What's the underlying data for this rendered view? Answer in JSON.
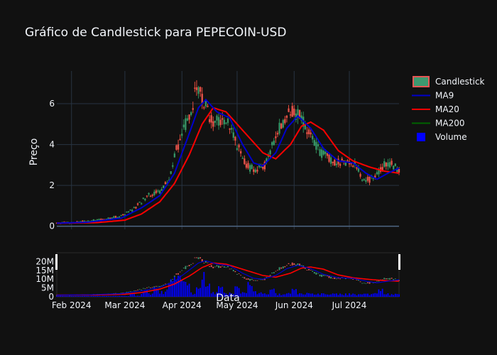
{
  "chart_data": {
    "type": "candlestick",
    "title": "Gráfico de Candlestick para PEPECOIN-USD",
    "ylabel": "Preço",
    "xlabel": "Data",
    "ylim": [
      -0.15,
      7.6
    ],
    "xlim": [
      "2024-01-24",
      "2024-07-28"
    ],
    "grid": true,
    "legend_position": "right",
    "x_ticks": [
      {
        "date": "2024-02-01",
        "label": "Feb 2024"
      },
      {
        "date": "2024-03-01",
        "label": "Mar 2024"
      },
      {
        "date": "2024-04-01",
        "label": "Apr 2024"
      },
      {
        "date": "2024-05-01",
        "label": "May 2024"
      },
      {
        "date": "2024-06-01",
        "label": "Jun 2024"
      },
      {
        "date": "2024-07-01",
        "label": "Jul 2024"
      }
    ],
    "y_ticks": [
      0,
      2,
      4,
      6
    ],
    "rangeslider": {
      "volume_ticks": [
        {
          "value": 0,
          "label": "0"
        },
        {
          "value": 5000000,
          "label": "5M"
        },
        {
          "value": 10000000,
          "label": "10M"
        },
        {
          "value": 15000000,
          "label": "15M"
        },
        {
          "value": 20000000,
          "label": "20M"
        }
      ]
    },
    "legend": [
      {
        "name": "Candlestick",
        "color": "#2e8b57",
        "alt_color": "#e74c3c",
        "kind": "candle"
      },
      {
        "name": "MA9",
        "color": "#0000cc",
        "kind": "line"
      },
      {
        "name": "MA20",
        "color": "#ff0000",
        "kind": "line"
      },
      {
        "name": "MA200",
        "color": "#006400",
        "kind": "line"
      },
      {
        "name": "Volume",
        "color": "#0000ff",
        "kind": "bar"
      }
    ],
    "price_anchors": [
      [
        "2024-01-24",
        0.15
      ],
      [
        "2024-02-01",
        0.2
      ],
      [
        "2024-02-10",
        0.25
      ],
      [
        "2024-02-20",
        0.35
      ],
      [
        "2024-02-28",
        0.5
      ],
      [
        "2024-03-05",
        0.8
      ],
      [
        "2024-03-10",
        1.2
      ],
      [
        "2024-03-15",
        1.6
      ],
      [
        "2024-03-20",
        1.7
      ],
      [
        "2024-03-25",
        2.3
      ],
      [
        "2024-03-28",
        3.5
      ],
      [
        "2024-04-01",
        4.5
      ],
      [
        "2024-04-05",
        5.5
      ],
      [
        "2024-04-09",
        6.7
      ],
      [
        "2024-04-12",
        6.3
      ],
      [
        "2024-04-15",
        5.6
      ],
      [
        "2024-04-18",
        5.0
      ],
      [
        "2024-04-22",
        5.2
      ],
      [
        "2024-04-25",
        5.3
      ],
      [
        "2024-04-29",
        4.5
      ],
      [
        "2024-05-03",
        3.5
      ],
      [
        "2024-05-07",
        2.9
      ],
      [
        "2024-05-12",
        2.8
      ],
      [
        "2024-05-16",
        3.0
      ],
      [
        "2024-05-20",
        4.0
      ],
      [
        "2024-05-25",
        5.0
      ],
      [
        "2024-05-30",
        5.6
      ],
      [
        "2024-06-03",
        5.5
      ],
      [
        "2024-06-07",
        5.0
      ],
      [
        "2024-06-11",
        4.3
      ],
      [
        "2024-06-15",
        3.6
      ],
      [
        "2024-06-20",
        3.3
      ],
      [
        "2024-06-25",
        3.1
      ],
      [
        "2024-06-30",
        3.2
      ],
      [
        "2024-07-03",
        3.1
      ],
      [
        "2024-07-08",
        2.4
      ],
      [
        "2024-07-12",
        2.3
      ],
      [
        "2024-07-16",
        2.5
      ],
      [
        "2024-07-20",
        3.0
      ],
      [
        "2024-07-24",
        3.1
      ],
      [
        "2024-07-28",
        2.7
      ]
    ],
    "ma9_anchors": [
      [
        "2024-01-24",
        0.15
      ],
      [
        "2024-02-10",
        0.2
      ],
      [
        "2024-02-28",
        0.4
      ],
      [
        "2024-03-10",
        0.9
      ],
      [
        "2024-03-20",
        1.5
      ],
      [
        "2024-03-28",
        2.6
      ],
      [
        "2024-04-04",
        4.3
      ],
      [
        "2024-04-10",
        5.8
      ],
      [
        "2024-04-14",
        6.2
      ],
      [
        "2024-04-20",
        5.6
      ],
      [
        "2024-04-27",
        5.3
      ],
      [
        "2024-05-04",
        4.0
      ],
      [
        "2024-05-10",
        3.1
      ],
      [
        "2024-05-15",
        2.95
      ],
      [
        "2024-05-22",
        3.6
      ],
      [
        "2024-05-28",
        4.8
      ],
      [
        "2024-06-03",
        5.4
      ],
      [
        "2024-06-10",
        4.8
      ],
      [
        "2024-06-17",
        3.8
      ],
      [
        "2024-06-25",
        3.2
      ],
      [
        "2024-07-03",
        3.1
      ],
      [
        "2024-07-10",
        2.6
      ],
      [
        "2024-07-16",
        2.3
      ],
      [
        "2024-07-22",
        2.6
      ],
      [
        "2024-07-28",
        2.85
      ]
    ],
    "ma20_anchors": [
      [
        "2024-01-24",
        0.15
      ],
      [
        "2024-02-15",
        0.18
      ],
      [
        "2024-03-01",
        0.3
      ],
      [
        "2024-03-10",
        0.6
      ],
      [
        "2024-03-20",
        1.2
      ],
      [
        "2024-03-28",
        2.1
      ],
      [
        "2024-04-05",
        3.5
      ],
      [
        "2024-04-12",
        5.0
      ],
      [
        "2024-04-18",
        5.8
      ],
      [
        "2024-04-25",
        5.6
      ],
      [
        "2024-05-01",
        5.0
      ],
      [
        "2024-05-08",
        4.3
      ],
      [
        "2024-05-15",
        3.6
      ],
      [
        "2024-05-22",
        3.3
      ],
      [
        "2024-05-30",
        4.0
      ],
      [
        "2024-06-05",
        4.9
      ],
      [
        "2024-06-10",
        5.1
      ],
      [
        "2024-06-17",
        4.7
      ],
      [
        "2024-06-25",
        3.7
      ],
      [
        "2024-07-03",
        3.2
      ],
      [
        "2024-07-12",
        2.9
      ],
      [
        "2024-07-20",
        2.7
      ],
      [
        "2024-07-28",
        2.6
      ]
    ],
    "volume_spikes": [
      [
        "2024-03-05",
        2000000
      ],
      [
        "2024-03-12",
        3500000
      ],
      [
        "2024-03-18",
        5000000
      ],
      [
        "2024-03-26",
        9000000
      ],
      [
        "2024-03-29",
        11000000
      ],
      [
        "2024-04-01",
        10000000
      ],
      [
        "2024-04-04",
        8000000
      ],
      [
        "2024-04-10",
        5000000
      ],
      [
        "2024-04-12",
        12000000
      ],
      [
        "2024-04-15",
        7000000
      ],
      [
        "2024-04-22",
        5500000
      ],
      [
        "2024-05-01",
        5000000
      ],
      [
        "2024-05-08",
        7000000
      ],
      [
        "2024-05-20",
        4000000
      ],
      [
        "2024-06-01",
        4500000
      ],
      [
        "2024-07-18",
        4000000
      ]
    ]
  }
}
